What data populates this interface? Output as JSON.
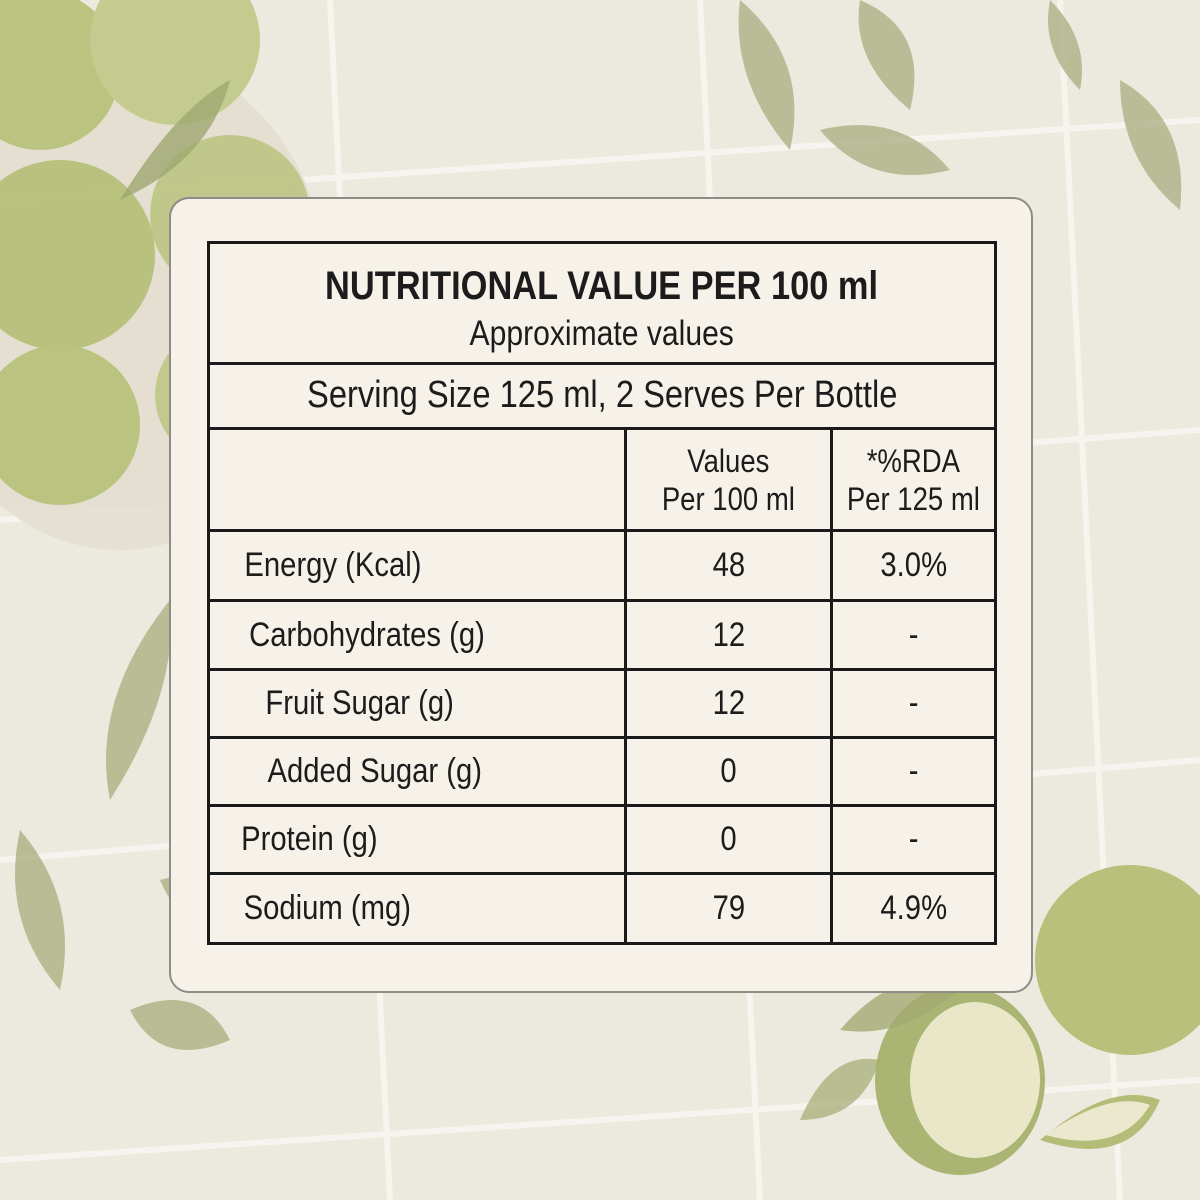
{
  "panel": {
    "title": "NUTRITIONAL VALUE PER 100 ml",
    "subtitle": "Approximate values",
    "serving": "Serving Size 125 ml, 2 Serves Per Bottle"
  },
  "columns": {
    "values_line1": "Values",
    "values_line2": "Per 100 ml",
    "rda_line1": "*%RDA",
    "rda_line2": "Per 125 ml"
  },
  "rows": [
    {
      "label": "Energy (Kcal)",
      "value": "48",
      "rda": "3.0%"
    },
    {
      "label": "Carbohydrates (g)",
      "value": "12",
      "rda": "-"
    },
    {
      "label": "Fruit Sugar (g)",
      "value": "12",
      "rda": "-"
    },
    {
      "label": "Added Sugar (g)",
      "value": "0",
      "rda": "-"
    },
    {
      "label": "Protein (g)",
      "value": "0",
      "rda": "-"
    },
    {
      "label": "Sodium (mg)",
      "value": "79",
      "rda": "4.9%"
    }
  ],
  "colors": {
    "background": "#ece8dc",
    "card": "#f6f2ea",
    "ink": "#1a1a1a",
    "lime": "#b8c27a"
  }
}
